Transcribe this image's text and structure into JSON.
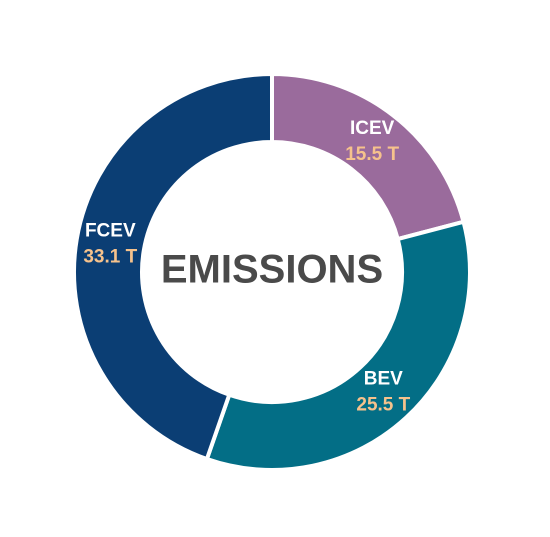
{
  "chart_data": {
    "type": "donut",
    "title": "EMISSIONS",
    "categories": [
      "ICEV",
      "BEV",
      "FCEV"
    ],
    "values": [
      15.5,
      25.5,
      33.1
    ],
    "value_labels": [
      "15.5 T",
      "25.5 T",
      "33.1 T"
    ],
    "colors": [
      "#9a6b9c",
      "#036e86",
      "#0b3e74"
    ]
  }
}
